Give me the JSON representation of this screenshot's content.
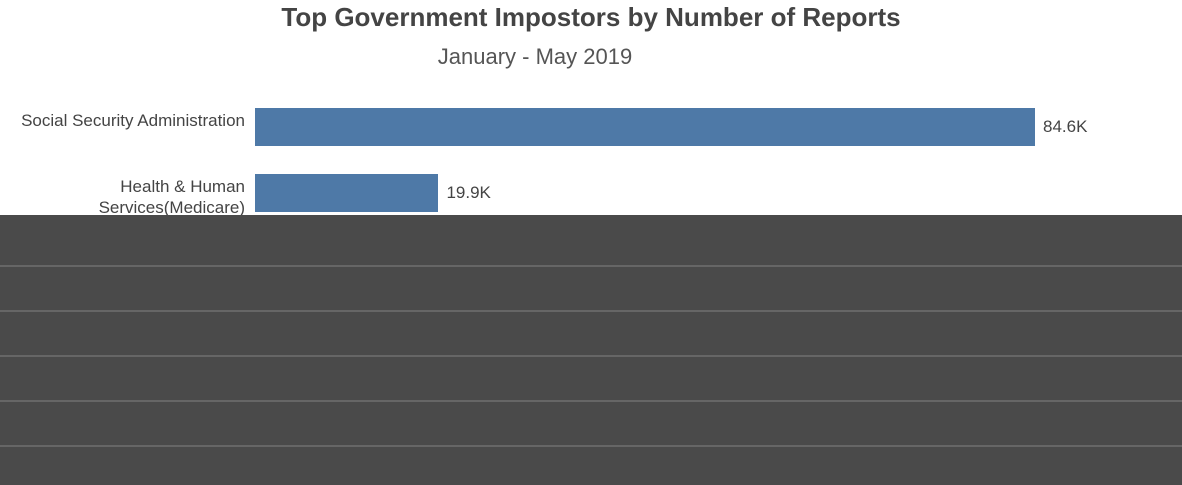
{
  "chart_data": {
    "type": "bar",
    "orientation": "horizontal",
    "title": "Top Government Impostors by Number of Reports",
    "subtitle": "January - May 2019",
    "categories": [
      "Social Security Administration",
      "Health & Human Services(Medicare)"
    ],
    "values": [
      84.6,
      19.9
    ],
    "value_labels": [
      "84.6K",
      "19.9K"
    ],
    "color": "#4e79a7"
  }
}
